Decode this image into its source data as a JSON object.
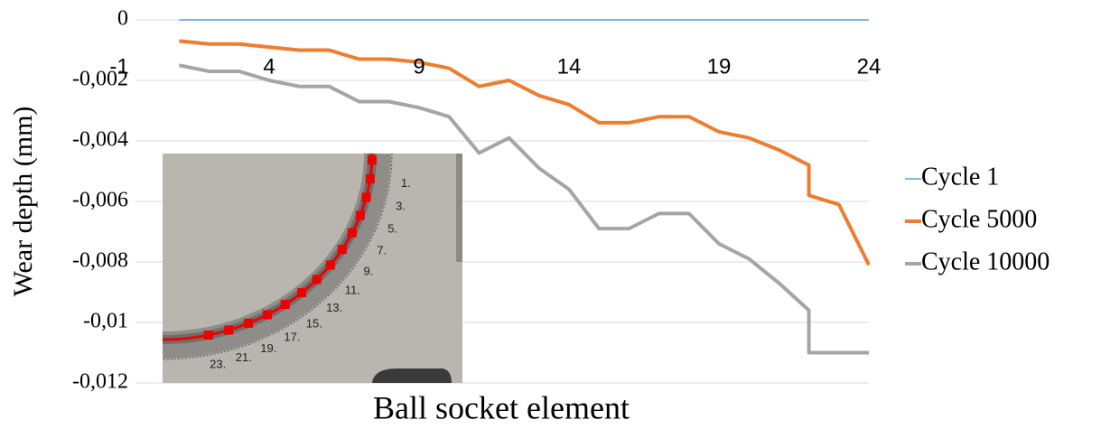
{
  "chart_data": {
    "type": "line",
    "y_label": "Wear depth (mm)",
    "x_label": "Ball socket element",
    "xlim": [
      -1,
      24
    ],
    "xticks": [
      -1,
      4,
      9,
      14,
      19,
      24
    ],
    "ylim": [
      -0.012,
      0
    ],
    "yticks": [
      0,
      {
        "value": -0.002,
        "label": "-0,002"
      },
      {
        "value": -0.004,
        "label": "-0,004"
      },
      {
        "value": -0.006,
        "label": "-0,006"
      },
      {
        "value": -0.008,
        "label": "-0,008"
      },
      {
        "value": -0.01,
        "label": "-0,01"
      },
      {
        "value": -0.012,
        "label": "-0,012"
      }
    ],
    "grid": true,
    "legend": "right",
    "series": [
      {
        "name": "Cycle 1",
        "color": "#5b9bd5",
        "x": [
          1,
          2,
          3,
          4,
          5,
          6,
          7,
          8,
          9,
          10,
          11,
          12,
          13,
          14,
          15,
          16,
          17,
          18,
          19,
          20,
          21,
          22,
          23,
          24
        ],
        "values": [
          0,
          0,
          0,
          0,
          0,
          0,
          0,
          0,
          0,
          0,
          0,
          0,
          0,
          0,
          0,
          0,
          0,
          0,
          0,
          0,
          0,
          0,
          0,
          0
        ]
      },
      {
        "name": "Cycle 5000",
        "color": "#ed7d31",
        "x": [
          1,
          2,
          3,
          4,
          5,
          6,
          7,
          8,
          9,
          10,
          11,
          12,
          13,
          14,
          15,
          16,
          17,
          18,
          19,
          20,
          21,
          22,
          22,
          23,
          24
        ],
        "values": [
          -0.0007,
          -0.0008,
          -0.0008,
          -0.0009,
          -0.001,
          -0.001,
          -0.0013,
          -0.0013,
          -0.0014,
          -0.0016,
          -0.0022,
          -0.002,
          -0.0025,
          -0.0028,
          -0.0034,
          -0.0034,
          -0.0032,
          -0.0032,
          -0.0037,
          -0.0039,
          -0.0043,
          -0.0048,
          -0.0058,
          -0.0061,
          -0.0081
        ]
      },
      {
        "name": "Cycle 10000",
        "color": "#a5a5a5",
        "x": [
          1,
          2,
          3,
          4,
          5,
          6,
          7,
          8,
          9,
          10,
          11,
          12,
          13,
          14,
          15,
          16,
          17,
          18,
          19,
          20,
          21,
          22,
          22,
          23,
          24
        ],
        "values": [
          -0.0015,
          -0.0017,
          -0.0017,
          -0.002,
          -0.0022,
          -0.0022,
          -0.0027,
          -0.0027,
          -0.0029,
          -0.0032,
          -0.0044,
          -0.0039,
          -0.0049,
          -0.0056,
          -0.0069,
          -0.0069,
          -0.0064,
          -0.0064,
          -0.0074,
          -0.0079,
          -0.0087,
          -0.0096,
          -0.011,
          -0.011,
          -0.011
        ]
      }
    ],
    "inset": {
      "labels": [
        "1.",
        "3.",
        "5.",
        "7.",
        "9.",
        "11.",
        "13.",
        "15.",
        "17.",
        "19.",
        "21.",
        "23."
      ]
    }
  }
}
